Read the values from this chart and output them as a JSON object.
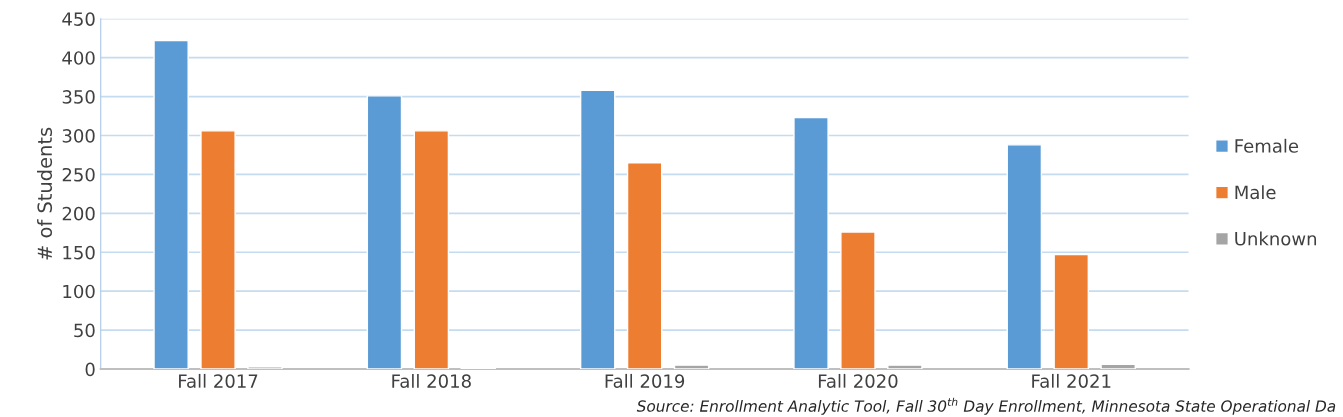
{
  "chart_data": {
    "type": "bar",
    "ylabel": "# of Students",
    "categories": [
      "Fall 2017",
      "Fall 2018",
      "Fall 2019",
      "Fall 2020",
      "Fall 2021"
    ],
    "series": [
      {
        "name": "Female",
        "color": "#5b9bd5",
        "values": [
          422,
          351,
          358,
          323,
          288
        ]
      },
      {
        "name": "Male",
        "color": "#ed7d31",
        "values": [
          306,
          306,
          265,
          176,
          147
        ]
      },
      {
        "name": "Unknown",
        "color": "#a5a5a5",
        "values": [
          3,
          2,
          5,
          5,
          6
        ]
      }
    ],
    "ylim": [
      0,
      450
    ],
    "yticks": [
      0,
      50,
      100,
      150,
      200,
      250,
      300,
      350,
      400,
      450
    ],
    "grid": "y",
    "legend": "right",
    "annotations": [
      "Source: Enrollment Analytic Tool, Fall 30$^{th}$ Day Enrollment, Minnesota State Operational Da"
    ]
  }
}
